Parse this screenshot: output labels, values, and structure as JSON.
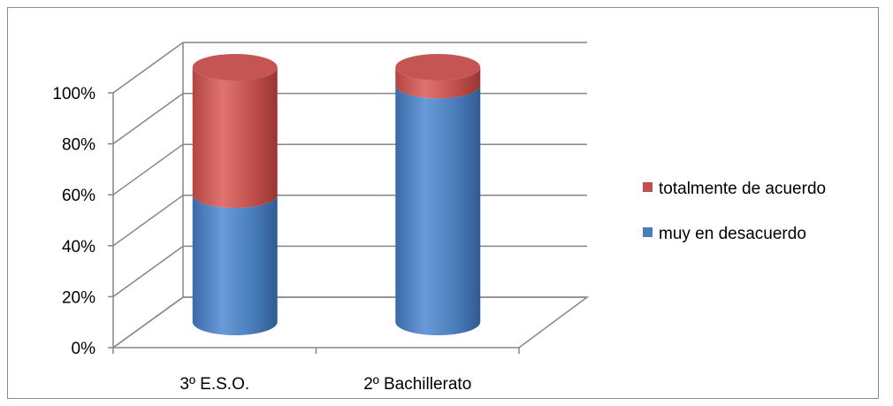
{
  "chart_data": {
    "type": "bar",
    "stacked": true,
    "three_d": true,
    "categories": [
      "3º E.S.O.",
      "2º Bachillerato"
    ],
    "series": [
      {
        "name": "muy en desacuerdo",
        "values": [
          50,
          93
        ],
        "color": "#4a7ebb"
      },
      {
        "name": "totalmente de acuerdo",
        "values": [
          50,
          7
        ],
        "color": "#c0504d"
      }
    ],
    "ylim": [
      0,
      100
    ],
    "yticks": [
      "0%",
      "20%",
      "40%",
      "60%",
      "80%",
      "100%"
    ],
    "grid": true,
    "legend_position": "right"
  }
}
